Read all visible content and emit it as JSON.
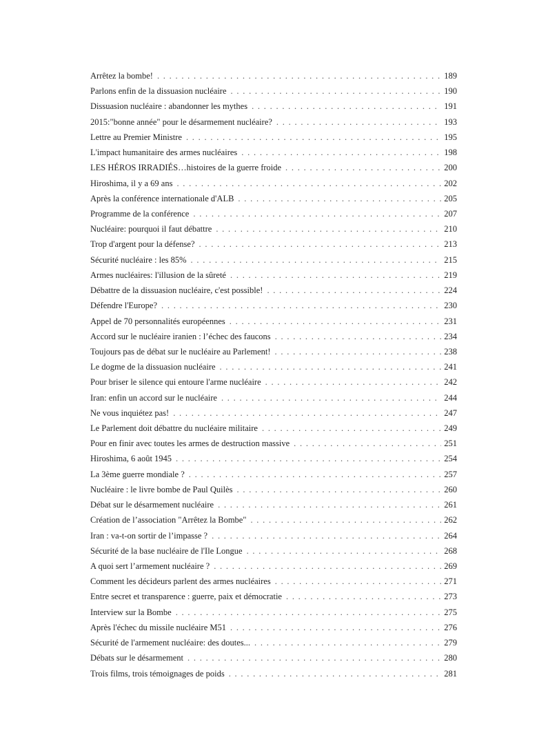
{
  "toc": [
    {
      "title": "Arrêtez la bombe!",
      "page": "189"
    },
    {
      "title": "Parlons enfin de la dissuasion nucléaire",
      "page": "190"
    },
    {
      "title": "Dissuasion nucléaire : abandonner les mythes",
      "page": "191"
    },
    {
      "title": "2015:\"bonne année\" pour le désarmement nucléaire?",
      "page": "193"
    },
    {
      "title": "Lettre au Premier Ministre",
      "page": "195"
    },
    {
      "title": "L'impact humanitaire des armes nucléaires",
      "page": "198"
    },
    {
      "title": "LES HÉROS IRRADIÉS…histoires de la guerre froide",
      "page": "200"
    },
    {
      "title": "Hiroshima, il y a 69 ans",
      "page": "202"
    },
    {
      "title": "Après la conférence internationale d'ALB",
      "page": "205"
    },
    {
      "title": "Programme de la conférence",
      "page": "207"
    },
    {
      "title": "Nucléaire: pourquoi il faut débattre",
      "page": "210"
    },
    {
      "title": "Trop d'argent pour la défense?",
      "page": "213"
    },
    {
      "title": "Sécurité nucléaire : les 85%",
      "page": "215"
    },
    {
      "title": "Armes nucléaires: l'illusion de la sûreté",
      "page": "219"
    },
    {
      "title": "Débattre de la dissuasion nucléaire, c'est possible!",
      "page": "224"
    },
    {
      "title": "Défendre l'Europe?",
      "page": "230"
    },
    {
      "title": "Appel de 70 personnalités européennes",
      "page": "231"
    },
    {
      "title": "Accord sur le nucléaire iranien : l’échec des faucons",
      "page": "234"
    },
    {
      "title": "Toujours pas de débat sur le nucléaire au Parlement!",
      "page": "238"
    },
    {
      "title": "Le dogme de la dissuasion nucléaire",
      "page": "241"
    },
    {
      "title": "Pour briser le silence qui entoure l'arme nucléaire",
      "page": "242"
    },
    {
      "title": "Iran: enfin un accord sur le nucléaire",
      "page": "244"
    },
    {
      "title": "Ne vous inquiétez pas!",
      "page": "247"
    },
    {
      "title": "Le Parlement doit débattre du nucléaire militaire",
      "page": "249"
    },
    {
      "title": "Pour en finir avec toutes les armes de destruction massive",
      "page": "251"
    },
    {
      "title": "Hiroshima, 6 août 1945",
      "page": "254"
    },
    {
      "title": "La 3ème guerre mondiale ?",
      "page": "257"
    },
    {
      "title": "Nucléaire : le livre bombe de Paul Quilès",
      "page": "260"
    },
    {
      "title": "Débat sur le désarmement nucléaire",
      "page": "261"
    },
    {
      "title": "Création de l’association \"Arrêtez la Bombe\"",
      "page": "262"
    },
    {
      "title": "Iran : va-t-on sortir de l’impasse ?",
      "page": "264"
    },
    {
      "title": "Sécurité de la base nucléaire de l'Ile Longue",
      "page": "268"
    },
    {
      "title": "A quoi sert l’armement nucléaire ?",
      "page": "269"
    },
    {
      "title": "Comment les décideurs parlent des armes nucléaires",
      "page": "271"
    },
    {
      "title": "Entre secret et transparence : guerre, paix et démocratie",
      "page": "273"
    },
    {
      "title": "Interview sur la Bombe",
      "page": "275"
    },
    {
      "title": "Après l'échec du missile nucléaire M51",
      "page": "276"
    },
    {
      "title": "Sécurité de l'armement nucléaire: des doutes...",
      "page": "279"
    },
    {
      "title": "Débats sur le désarmement",
      "page": "280"
    },
    {
      "title": "Trois films, trois témoignages de poids",
      "page": "281"
    }
  ]
}
